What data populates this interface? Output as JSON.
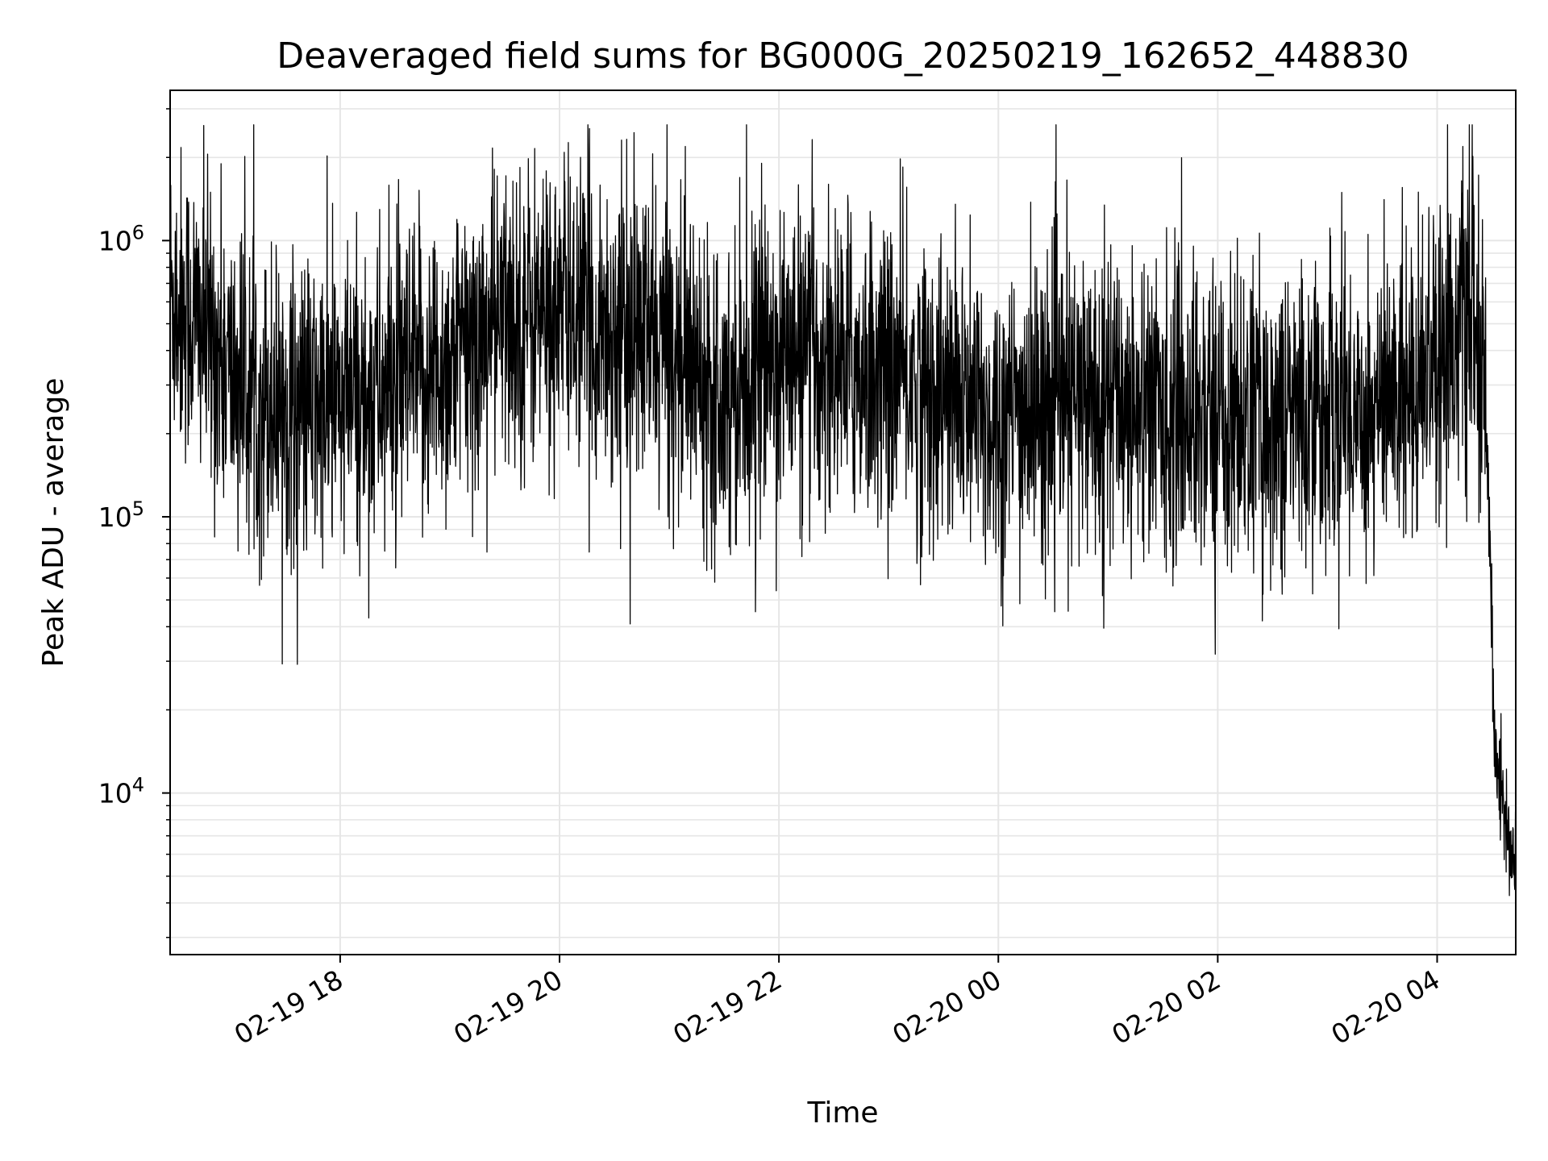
{
  "chart_data": {
    "type": "line",
    "title": "Deaveraged field sums for BG000G_20250219_162652_448830",
    "xlabel": "Time",
    "ylabel": "Peak ADU - average",
    "yscale": "log",
    "ylim": [
      2600,
      3500000
    ],
    "xlim": [
      "2025-02-19 16:27",
      "2025-02-20 04:43"
    ],
    "grid": true,
    "line_color": "#000000",
    "grid_color": "#e6e6e6",
    "x_ticks": [
      {
        "label": "02-19 18",
        "time": "2025-02-19 18:00"
      },
      {
        "label": "02-19 20",
        "time": "2025-02-19 20:00"
      },
      {
        "label": "02-19 22",
        "time": "2025-02-19 22:00"
      },
      {
        "label": "02-20 00",
        "time": "2025-02-20 00:00"
      },
      {
        "label": "02-20 02",
        "time": "2025-02-20 02:00"
      },
      {
        "label": "02-20 04",
        "time": "2025-02-20 04:00"
      }
    ],
    "y_ticks": [
      {
        "value": 10000,
        "base": "10",
        "exp": "4"
      },
      {
        "value": 100000,
        "base": "10",
        "exp": "5"
      },
      {
        "value": 1000000,
        "base": "10",
        "exp": "6"
      }
    ],
    "series": [
      {
        "name": "",
        "points": [
          [
            "2025-02-19 16:27",
            650000
          ],
          [
            "2025-02-19 16:45",
            480000
          ],
          [
            "2025-02-19 17:00",
            320000
          ],
          [
            "2025-02-19 17:15",
            270000
          ],
          [
            "2025-02-19 17:30",
            260000
          ],
          [
            "2025-02-19 17:45",
            240000
          ],
          [
            "2025-02-19 18:00",
            250000
          ],
          [
            "2025-02-19 18:30",
            290000
          ],
          [
            "2025-02-19 19:00",
            360000
          ],
          [
            "2025-02-19 19:30",
            520000
          ],
          [
            "2025-02-19 20:00",
            560000
          ],
          [
            "2025-02-19 20:30",
            480000
          ],
          [
            "2025-02-19 21:00",
            420000
          ],
          [
            "2025-02-19 21:30",
            300000
          ],
          [
            "2025-02-19 22:00",
            380000
          ],
          [
            "2025-02-19 22:30",
            360000
          ],
          [
            "2025-02-19 23:00",
            330000
          ],
          [
            "2025-02-19 23:30",
            270000
          ],
          [
            "2025-02-20 00:00",
            220000
          ],
          [
            "2025-02-20 00:30",
            250000
          ],
          [
            "2025-02-20 01:00",
            270000
          ],
          [
            "2025-02-20 01:30",
            240000
          ],
          [
            "2025-02-20 02:00",
            230000
          ],
          [
            "2025-02-20 02:30",
            220000
          ],
          [
            "2025-02-20 03:00",
            250000
          ],
          [
            "2025-02-20 03:30",
            240000
          ],
          [
            "2025-02-20 04:00",
            420000
          ],
          [
            "2025-02-20 04:20",
            560000
          ],
          [
            "2025-02-20 04:27",
            200000
          ],
          [
            "2025-02-20 04:32",
            12000
          ],
          [
            "2025-02-20 04:37",
            9500
          ],
          [
            "2025-02-20 04:43",
            4500
          ]
        ]
      }
    ]
  }
}
